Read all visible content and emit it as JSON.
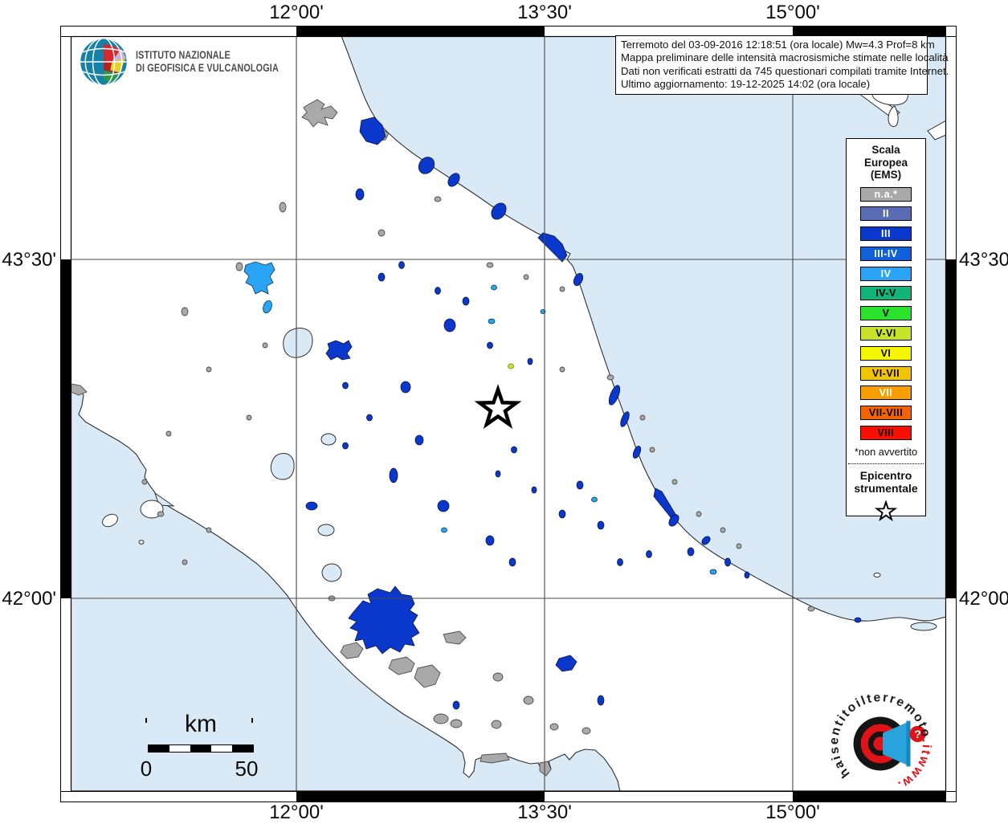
{
  "header": {
    "institution_line1": "ISTITUTO NAZIONALE",
    "institution_line2": "DI GEOFISICA E VULCANOLOGIA"
  },
  "info_box": {
    "lines": [
      "Terremoto del 03-09-2016 12:18:51 (ora locale) Mw=4.3 Prof=8 km",
      "Mappa preliminare delle intensità macrosismiche stimate nelle località",
      "Dati non verificati estratti da 745 questionari compilati tramite Internet.",
      "Ultimo aggiornamento: 19-12-2025 14:02 (ora locale)"
    ]
  },
  "legend": {
    "title_lines": [
      "Scala",
      "Europea",
      "(EMS)"
    ],
    "classes": [
      {
        "label": "n.a.*",
        "color": "#a9a9a9",
        "text": "#ffffff"
      },
      {
        "label": "II",
        "color": "#5a6cb4",
        "text": "#ffffff"
      },
      {
        "label": "III",
        "color": "#0a38cc",
        "text": "#ffffff"
      },
      {
        "label": "III-IV",
        "color": "#1060dc",
        "text": "#ffffff"
      },
      {
        "label": "IV",
        "color": "#2aa4f4",
        "text": "#ffffff"
      },
      {
        "label": "IV-V",
        "color": "#12b47a",
        "text": "#000000"
      },
      {
        "label": "V",
        "color": "#2be22b",
        "text": "#000000"
      },
      {
        "label": "V-VI",
        "color": "#c8e428",
        "text": "#000000"
      },
      {
        "label": "VI",
        "color": "#f6f600",
        "text": "#000000"
      },
      {
        "label": "VI-VII",
        "color": "#f2c500",
        "text": "#000000"
      },
      {
        "label": "VII",
        "color": "#f89e00",
        "text": "#ffffff"
      },
      {
        "label": "VII-VIII",
        "color": "#f36400",
        "text": "#000000"
      },
      {
        "label": "VIII",
        "color": "#fa0e00",
        "text": "#000000"
      }
    ],
    "footnote": "*non avvertito",
    "epicenter_label_line1": "Epicentro",
    "epicenter_label_line2": "strumentale"
  },
  "axes": {
    "lon_labels": [
      "12°00'",
      "13°30'",
      "15°00'"
    ],
    "lat_labels": [
      "43°30'",
      "42°00'"
    ]
  },
  "scalebar": {
    "unit": "km",
    "start": "0",
    "end": "50"
  },
  "watermark": {
    "text_black": "haisentitoilterremoto",
    "text_red_suffix": ".it",
    "text_red_prefix": "www.",
    "question_mark": "?"
  },
  "map": {
    "colors": {
      "sea": "#d9eaf6",
      "land": "#ffffff",
      "grid": "#4a4a4a",
      "epicenter_fill": "#ffffff",
      "epicenter_stroke": "#000000"
    }
  }
}
